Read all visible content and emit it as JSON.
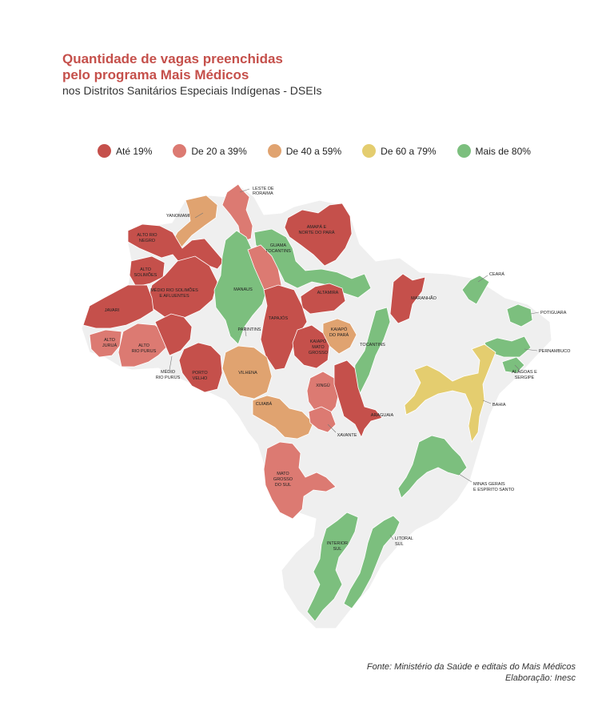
{
  "title_line1": "Quantidade de vagas preenchidas",
  "title_line2": "pelo programa Mais Médicos",
  "subtitle": "nos Distritos Sanitários Especiais Indígenas - DSEIs",
  "legend": [
    {
      "label": "Até 19%",
      "color": "#c5504b"
    },
    {
      "label": "De 20 a 39%",
      "color": "#dc7a72"
    },
    {
      "label": "De 40 a 59%",
      "color": "#e0a370"
    },
    {
      "label": "De 60 a 79%",
      "color": "#e4cd6f"
    },
    {
      "label": "Mais de 80%",
      "color": "#7cbf7e"
    }
  ],
  "colors": {
    "country": "#efefef",
    "border": "#ffffff",
    "leader": "#777777"
  },
  "districts": [
    {
      "name": "YANOMAMI",
      "cls": 2
    },
    {
      "name": "LESTE DE RORAIMA",
      "cls": 1
    },
    {
      "name": "AMAPÁ E NORTE DO PARÁ",
      "cls": 0
    },
    {
      "name": "ALTO RIO NEGRO",
      "cls": 0
    },
    {
      "name": "GUAMÁ TOCANTINS",
      "cls": 4
    },
    {
      "name": "ALTO SOLIMÕES",
      "cls": 0
    },
    {
      "name": "MÉDIO RIO SOLIMÕES E AFLUENTES",
      "cls": 0
    },
    {
      "name": "MANAUS",
      "cls": 4
    },
    {
      "name": "ALTAMIRA",
      "cls": 0
    },
    {
      "name": "MARANHÃO",
      "cls": 0
    },
    {
      "name": "CEARÁ",
      "cls": 4
    },
    {
      "name": "POTIGUARA",
      "cls": 4
    },
    {
      "name": "PERNAMBUCO",
      "cls": 4
    },
    {
      "name": "ALAGOAS E SERGIPE",
      "cls": 4
    },
    {
      "name": "JAVARI",
      "cls": 0
    },
    {
      "name": "ALTO JURUÁ",
      "cls": 1
    },
    {
      "name": "ALTO RIO PURUS",
      "cls": 1
    },
    {
      "name": "MÉDIO RIO PURUS",
      "cls": 0
    },
    {
      "name": "PARINTINS",
      "cls": 1
    },
    {
      "name": "TAPAJÓS",
      "cls": 0
    },
    {
      "name": "KAIAPÓ DO PARÁ",
      "cls": 2
    },
    {
      "name": "KAIAPÓ MATO GROSSO",
      "cls": 0
    },
    {
      "name": "TOCANTINS",
      "cls": 4
    },
    {
      "name": "PORTO VELHO",
      "cls": 0
    },
    {
      "name": "VILHENA",
      "cls": 2
    },
    {
      "name": "XINGU",
      "cls": 1
    },
    {
      "name": "ARAGUAIA",
      "cls": 0
    },
    {
      "name": "BAHIA",
      "cls": 3
    },
    {
      "name": "CUIABÁ",
      "cls": 2
    },
    {
      "name": "XAVANTE",
      "cls": 1
    },
    {
      "name": "MATO GROSSO DO SUL",
      "cls": 1
    },
    {
      "name": "MINAS GERAIS E ESPÍRITO SANTO",
      "cls": 4
    },
    {
      "name": "INTERIOR SUL",
      "cls": 4
    },
    {
      "name": "LITORAL SUL",
      "cls": 4
    }
  ],
  "source": "Fonte: Ministério da Saúde e editais do Mais Médicos",
  "credit": "Elaboração: Inesc"
}
